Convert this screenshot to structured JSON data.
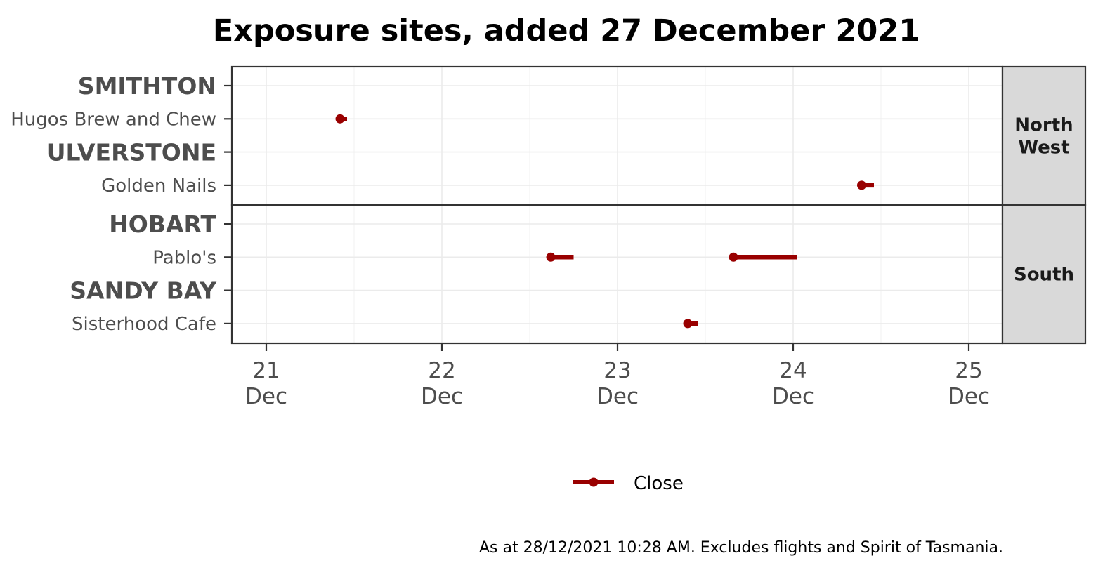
{
  "chart_data": {
    "type": "range-dot",
    "title": "Exposure sites, added 27 December 2021",
    "x_ticks": [
      {
        "day": "21",
        "month": "Dec",
        "value": 21
      },
      {
        "day": "22",
        "month": "Dec",
        "value": 22
      },
      {
        "day": "23",
        "month": "Dec",
        "value": 23
      },
      {
        "day": "24",
        "month": "Dec",
        "value": 24
      },
      {
        "day": "25",
        "month": "Dec",
        "value": 25
      }
    ],
    "xlim": [
      20.8,
      25.2
    ],
    "legend": {
      "label": "Close",
      "position": "bottom",
      "color": "#990000"
    },
    "caption": "As at 28/12/2021 10:28 AM. Excludes flights and Spirit of Tasmania.",
    "panels": [
      {
        "region": [
          "North",
          "West"
        ],
        "rows": [
          {
            "label": "SMITHTON",
            "kind": "town",
            "intervals": []
          },
          {
            "label": "Hugos Brew and Chew",
            "kind": "site",
            "intervals": [
              [
                21.42,
                21.46
              ]
            ]
          },
          {
            "label": "ULVERSTONE",
            "kind": "town",
            "intervals": []
          },
          {
            "label": "Golden Nails",
            "kind": "site",
            "intervals": [
              [
                24.39,
                24.46
              ]
            ]
          }
        ]
      },
      {
        "region": [
          "South"
        ],
        "rows": [
          {
            "label": "HOBART",
            "kind": "town",
            "intervals": []
          },
          {
            "label": "Pablo's",
            "kind": "site",
            "intervals": [
              [
                22.62,
                22.75
              ],
              [
                23.66,
                24.02
              ]
            ]
          },
          {
            "label": "SANDY BAY",
            "kind": "town",
            "intervals": []
          },
          {
            "label": "Sisterhood Cafe",
            "kind": "site",
            "intervals": [
              [
                23.4,
                23.46
              ]
            ]
          }
        ]
      }
    ]
  }
}
